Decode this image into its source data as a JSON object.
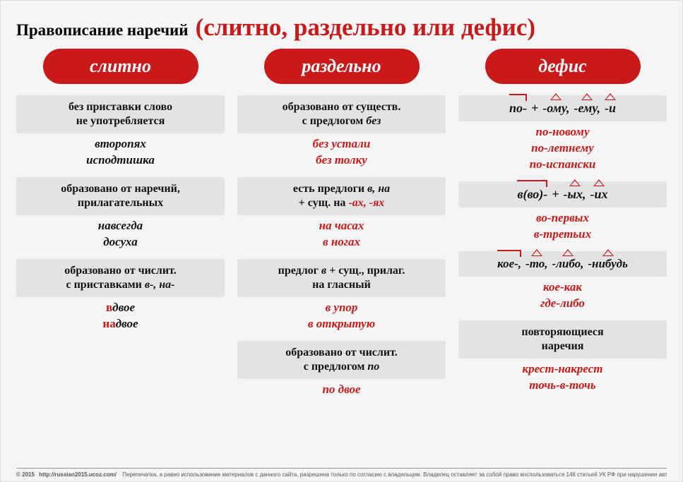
{
  "title": {
    "small": "Правописание наречий",
    "large": "(слитно, раздельно или дефис)"
  },
  "columns": [
    {
      "header": "слитно",
      "blocks": [
        {
          "rule": "без приставки слово<br>не употребляется",
          "examples": "второпях<br>исподтишка"
        },
        {
          "rule": "образовано от наречий,<br>прилагательных",
          "examples": "навсегда<br>досуха"
        },
        {
          "rule": "образовано от числит.<br>с приставками <span class='rbi'>в-, на-</span>",
          "examples": "<span class='hl'>в</span>двое<br><span class='hl'>на</span>двое"
        }
      ]
    },
    {
      "header": "раздельно",
      "blocks": [
        {
          "rule": "образовано от существ.<br>с предлогом <span class='rbi'>без</span>",
          "examples": "<span class='ex-red'>без устали<br>без толку</span>"
        },
        {
          "rule": "есть предлоги <span class='rbi'>в, на</span><br>+ сущ. на <span class='rbi red'>-ах, -ях</span>",
          "examples": "<span class='ex-red'>на час<span style='font-style:italic'>ах</span><br>в ног<span style='font-style:italic'>ах</span></span>"
        },
        {
          "rule": "предлог <span class='rbi'>в</span> + сущ., прилаг.<br>на гласный",
          "examples": "<span class='ex-red'>в упор<br>в открытую</span>"
        },
        {
          "rule": "образовано от числит.<br>с предлогом <span class='rbi'>по</span>",
          "examples": "<span class='ex-red'>по двое</span>"
        }
      ]
    },
    {
      "header": "дефис",
      "blocks": [
        {
          "formula": [
            {
              "t": "по-",
              "mark": "prefix"
            },
            {
              "t": "+",
              "plain": true
            },
            {
              "t": "-ому,",
              "mark": "suffix"
            },
            {
              "t": "-ему,",
              "mark": "suffix"
            },
            {
              "t": "-и",
              "mark": "suffix"
            }
          ],
          "examples": "<span class='ex-red'>по-новому<br>по-летнему<br>по-испански</span>"
        },
        {
          "formula": [
            {
              "t": "в(во)-",
              "mark": "prefix"
            },
            {
              "t": "+",
              "plain": true
            },
            {
              "t": "-ых,",
              "mark": "suffix"
            },
            {
              "t": "-их",
              "mark": "suffix"
            }
          ],
          "examples": "<span class='ex-red'>во-первых<br>в-третьих</span>"
        },
        {
          "formula_small": true,
          "formula": [
            {
              "t": "кое-,",
              "mark": "prefix"
            },
            {
              "t": "-то,",
              "mark": "suffix"
            },
            {
              "t": "-либо,",
              "mark": "suffix"
            },
            {
              "t": "-нибудь",
              "mark": "suffix"
            }
          ],
          "examples": "<span class='ex-red'>кое-как<br>где-либо</span>"
        },
        {
          "rule": "повторяющиеся<br>наречия",
          "examples": "<span class='ex-red'>крест-накрест<br>точь-в-точь</span>"
        }
      ]
    }
  ],
  "footer_year": "© 2015",
  "footer_url": "http://russian2015.ucoz.com/",
  "footer_text": "Перепечатка, а равно использование материалов с данного сайта, разрешена только по согласию с владельцем. Владелец оставляет за собой право воспользоваться 146 статьей УК РФ при нарушении авторских и смежных прав."
}
